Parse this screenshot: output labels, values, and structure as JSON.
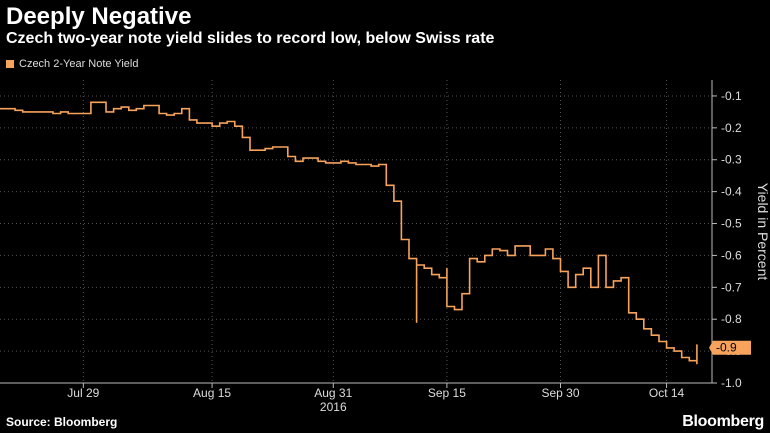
{
  "header": {
    "title": "Deeply Negative",
    "subtitle": "Czech two-year note yield slides to record low, below Swiss rate"
  },
  "footer": {
    "source": "Source: Bloomberg",
    "brand": "Bloomberg"
  },
  "colors": {
    "series": "#f7a35c",
    "grid": "#555555",
    "axis": "#bbbbbb",
    "background": "#000000"
  },
  "chart_data": {
    "type": "line",
    "title": "Deeply Negative",
    "subtitle": "Czech two-year note yield slides to record low, below Swiss rate",
    "xlabel": "",
    "ylabel": "Yield in Percent",
    "y_axis_side": "right",
    "ylim": [
      -1.0,
      -0.05
    ],
    "y_ticks": [
      -0.1,
      -0.2,
      -0.3,
      -0.4,
      -0.5,
      -0.6,
      -0.7,
      -0.8,
      -0.9,
      -1.0
    ],
    "y_tick_labels": [
      "-0.1",
      "-0.2",
      "-0.3",
      "-0.4",
      "-0.5",
      "-0.6",
      "-0.7",
      "-0.8",
      "-0.9",
      "-1.0"
    ],
    "xlim": [
      "2016-07-18",
      "2016-10-20"
    ],
    "x_ticks": [
      {
        "date": "2016-07-29",
        "label": "Jul 29"
      },
      {
        "date": "2016-08-15",
        "label": "Aug 15"
      },
      {
        "date": "2016-08-31",
        "label": "Aug 31"
      },
      {
        "date": "2016-09-15",
        "label": "Sep 15"
      },
      {
        "date": "2016-09-30",
        "label": "Sep 30"
      },
      {
        "date": "2016-10-14",
        "label": "Oct 14"
      }
    ],
    "x_year_label": {
      "date": "2016-08-31",
      "label": "2016"
    },
    "grid": true,
    "legend": "top-left",
    "last_value_label": "-0.9",
    "series": [
      {
        "name": "Czech 2-Year Note Yield",
        "step": true,
        "points": [
          [
            "2016-07-18",
            -0.14
          ],
          [
            "2016-07-19",
            -0.14
          ],
          [
            "2016-07-20",
            -0.145
          ],
          [
            "2016-07-21",
            -0.15
          ],
          [
            "2016-07-22",
            -0.15
          ],
          [
            "2016-07-25",
            -0.155
          ],
          [
            "2016-07-26",
            -0.15
          ],
          [
            "2016-07-27",
            -0.155
          ],
          [
            "2016-07-28",
            -0.155
          ],
          [
            "2016-07-29",
            -0.155
          ],
          [
            "2016-07-30",
            -0.12
          ],
          [
            "2016-08-01",
            -0.15
          ],
          [
            "2016-08-02",
            -0.14
          ],
          [
            "2016-08-03",
            -0.135
          ],
          [
            "2016-08-04",
            -0.145
          ],
          [
            "2016-08-05",
            -0.14
          ],
          [
            "2016-08-06",
            -0.13
          ],
          [
            "2016-08-08",
            -0.155
          ],
          [
            "2016-08-09",
            -0.16
          ],
          [
            "2016-08-10",
            -0.155
          ],
          [
            "2016-08-11",
            -0.14
          ],
          [
            "2016-08-12",
            -0.175
          ],
          [
            "2016-08-13",
            -0.185
          ],
          [
            "2016-08-15",
            -0.195
          ],
          [
            "2016-08-16",
            -0.185
          ],
          [
            "2016-08-17",
            -0.18
          ],
          [
            "2016-08-18",
            -0.195
          ],
          [
            "2016-08-19",
            -0.23
          ],
          [
            "2016-08-20",
            -0.27
          ],
          [
            "2016-08-22",
            -0.265
          ],
          [
            "2016-08-23",
            -0.26
          ],
          [
            "2016-08-24",
            -0.26
          ],
          [
            "2016-08-25",
            -0.29
          ],
          [
            "2016-08-26",
            -0.305
          ],
          [
            "2016-08-27",
            -0.295
          ],
          [
            "2016-08-29",
            -0.305
          ],
          [
            "2016-08-30",
            -0.31
          ],
          [
            "2016-08-31",
            -0.31
          ],
          [
            "2016-09-01",
            -0.305
          ],
          [
            "2016-09-02",
            -0.31
          ],
          [
            "2016-09-03",
            -0.315
          ],
          [
            "2016-09-05",
            -0.32
          ],
          [
            "2016-09-06",
            -0.315
          ],
          [
            "2016-09-07",
            -0.38
          ],
          [
            "2016-09-08",
            -0.43
          ],
          [
            "2016-09-09",
            -0.55
          ],
          [
            "2016-09-10",
            -0.61
          ],
          [
            "2016-09-11",
            -0.81
          ],
          [
            "2016-09-11",
            -0.63
          ],
          [
            "2016-09-12",
            -0.64
          ],
          [
            "2016-09-13",
            -0.66
          ],
          [
            "2016-09-14",
            -0.67
          ],
          [
            "2016-09-15",
            -0.64
          ],
          [
            "2016-09-15",
            -0.76
          ],
          [
            "2016-09-16",
            -0.77
          ],
          [
            "2016-09-17",
            -0.72
          ],
          [
            "2016-09-18",
            -0.61
          ],
          [
            "2016-09-19",
            -0.62
          ],
          [
            "2016-09-20",
            -0.6
          ],
          [
            "2016-09-21",
            -0.58
          ],
          [
            "2016-09-22",
            -0.585
          ],
          [
            "2016-09-23",
            -0.6
          ],
          [
            "2016-09-24",
            -0.57
          ],
          [
            "2016-09-26",
            -0.6
          ],
          [
            "2016-09-27",
            -0.6
          ],
          [
            "2016-09-28",
            -0.58
          ],
          [
            "2016-09-29",
            -0.61
          ],
          [
            "2016-09-30",
            -0.65
          ],
          [
            "2016-10-01",
            -0.7
          ],
          [
            "2016-10-02",
            -0.66
          ],
          [
            "2016-10-03",
            -0.64
          ],
          [
            "2016-10-04",
            -0.7
          ],
          [
            "2016-10-05",
            -0.6
          ],
          [
            "2016-10-06",
            -0.7
          ],
          [
            "2016-10-07",
            -0.68
          ],
          [
            "2016-10-08",
            -0.67
          ],
          [
            "2016-10-09",
            -0.78
          ],
          [
            "2016-10-10",
            -0.8
          ],
          [
            "2016-10-11",
            -0.83
          ],
          [
            "2016-10-12",
            -0.85
          ],
          [
            "2016-10-13",
            -0.87
          ],
          [
            "2016-10-14",
            -0.89
          ],
          [
            "2016-10-15",
            -0.9
          ],
          [
            "2016-10-16",
            -0.92
          ],
          [
            "2016-10-17",
            -0.93
          ],
          [
            "2016-10-18",
            -0.94
          ],
          [
            "2016-10-18",
            -0.88
          ]
        ]
      }
    ]
  }
}
